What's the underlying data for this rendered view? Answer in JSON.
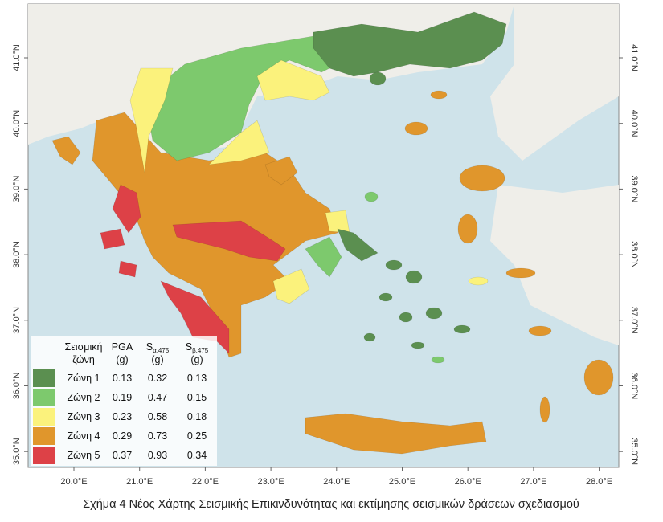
{
  "map": {
    "lon_ticks": [
      {
        "value": 20,
        "label": "20.0°E"
      },
      {
        "value": 21,
        "label": "21.0°E"
      },
      {
        "value": 22,
        "label": "22.0°E"
      },
      {
        "value": 23,
        "label": "23.0°E"
      },
      {
        "value": 24,
        "label": "24.0°E"
      },
      {
        "value": 25,
        "label": "25.0°E"
      },
      {
        "value": 26,
        "label": "26.0°E"
      },
      {
        "value": 27,
        "label": "27.0°E"
      },
      {
        "value": 28,
        "label": "28.0°E"
      }
    ],
    "lat_ticks": [
      {
        "value": 41,
        "label": "41.0°N"
      },
      {
        "value": 40,
        "label": "40.0°N"
      },
      {
        "value": 39,
        "label": "39.0°N"
      },
      {
        "value": 38,
        "label": "38.0°N"
      },
      {
        "value": 37,
        "label": "37.0°N"
      },
      {
        "value": 36,
        "label": "36.0°N"
      },
      {
        "value": 35,
        "label": "35.0°N"
      }
    ]
  },
  "legend": {
    "header": {
      "zone": [
        "Σεισμική",
        "ζώνη"
      ],
      "pga": [
        "PGA",
        "(g)"
      ],
      "sa": {
        "base": "S",
        "sub": "α,475",
        "unit": "(g)"
      },
      "sb": {
        "base": "S",
        "sub": "β,475",
        "unit": "(g)"
      }
    },
    "rows": [
      {
        "zone": "Ζώνη 1",
        "color": "#5b8f50",
        "pga": "0.13",
        "sa": "0.32",
        "sb": "0.13"
      },
      {
        "zone": "Ζώνη 2",
        "color": "#7dc96d",
        "pga": "0.19",
        "sa": "0.47",
        "sb": "0.15"
      },
      {
        "zone": "Ζώνη 3",
        "color": "#fbf27c",
        "pga": "0.23",
        "sa": "0.58",
        "sb": "0.18"
      },
      {
        "zone": "Ζώνη 4",
        "color": "#e0962c",
        "pga": "0.29",
        "sa": "0.73",
        "sb": "0.25"
      },
      {
        "zone": "Ζώνη 5",
        "color": "#dd4147",
        "pga": "0.37",
        "sa": "0.93",
        "sb": "0.34"
      }
    ]
  },
  "caption": "Σχήμα 4 Νέος Χάρτης Σεισμικής Επικινδυνότητας και εκτίμησης σεισμικών δράσεων σχεδιασμού"
}
